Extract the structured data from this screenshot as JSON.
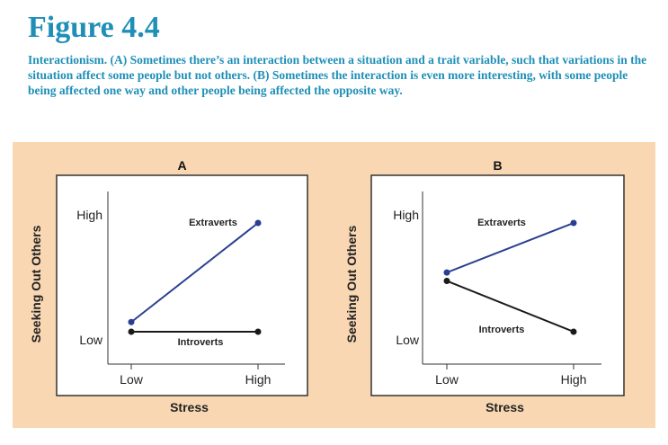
{
  "figure": {
    "title": "Figure 4.4",
    "caption": "Interactionism. (A) Sometimes there’s an interaction between a situation and a trait variable, such that variations in the situation affect some people but not others. (B) Sometimes the interaction is even more interesting, with some people being affected one way and other people being affected the opposite way."
  },
  "colors": {
    "panel_background": "#f9d7b3",
    "title_text": "#1f8fb8",
    "extraverts": "#2a3f8f",
    "introverts": "#1a1a1a"
  },
  "chart_data": [
    {
      "type": "line",
      "panel_label": "A",
      "title": "A",
      "xlabel": "Stress",
      "ylabel": "Seeking Out Others",
      "x_ticks": [
        "Low",
        "High"
      ],
      "y_ticks": [
        "Low",
        "High"
      ],
      "ylim": [
        0,
        1
      ],
      "grid": false,
      "series": [
        {
          "name": "Extraverts",
          "color": "#2a3f8f",
          "values": [
            0.18,
            1.0
          ]
        },
        {
          "name": "Introverts",
          "color": "#1a1a1a",
          "values": [
            0.1,
            0.1
          ]
        }
      ]
    },
    {
      "type": "line",
      "panel_label": "B",
      "title": "B",
      "xlabel": "Stress",
      "ylabel": "Seeking Out Others",
      "x_ticks": [
        "Low",
        "High"
      ],
      "y_ticks": [
        "Low",
        "High"
      ],
      "ylim": [
        0,
        1
      ],
      "grid": false,
      "series": [
        {
          "name": "Extraverts",
          "color": "#2a3f8f",
          "values": [
            0.59,
            1.0
          ]
        },
        {
          "name": "Introverts",
          "color": "#1a1a1a",
          "values": [
            0.52,
            0.1
          ]
        }
      ]
    }
  ]
}
